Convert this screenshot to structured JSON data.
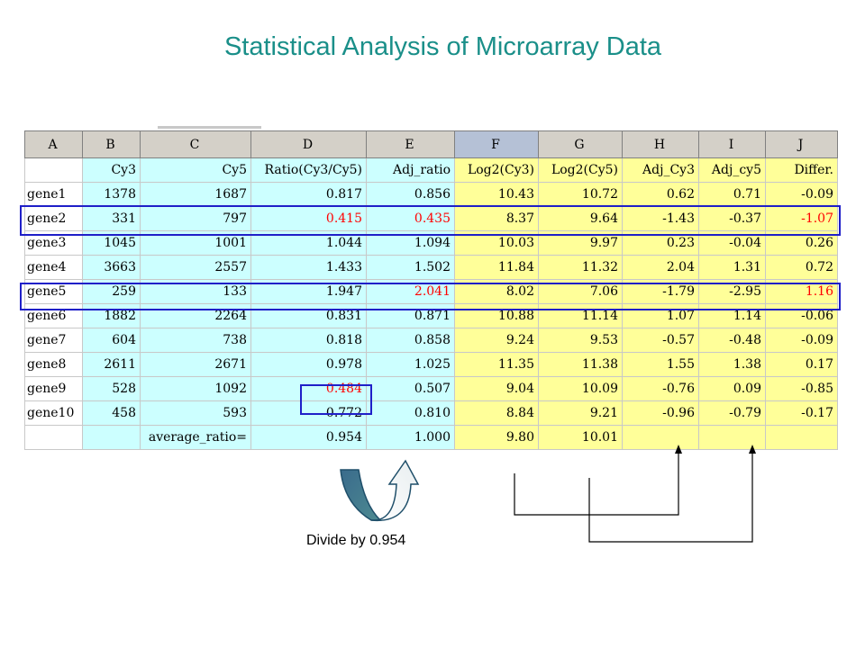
{
  "title": "Statistical Analysis of Microarray Data",
  "caption": "Divide by 0.954",
  "column_letters": [
    "A",
    "B",
    "C",
    "D",
    "E",
    "F",
    "G",
    "H",
    "I",
    "J"
  ],
  "headers": [
    "",
    "Cy3",
    "Cy5",
    "Ratio(Cy3/Cy5)",
    "Adj_ratio",
    "Log2(Cy3)",
    "Log2(Cy5)",
    "Adj_Cy3",
    "Adj_cy5",
    "Differ."
  ],
  "rows": [
    [
      "gene1",
      "1378",
      "1687",
      "0.817",
      "0.856",
      "10.43",
      "10.72",
      "0.62",
      "0.71",
      "-0.09"
    ],
    [
      "gene2",
      "331",
      "797",
      "0.415",
      "0.435",
      "8.37",
      "9.64",
      "-1.43",
      "-0.37",
      "-1.07"
    ],
    [
      "gene3",
      "1045",
      "1001",
      "1.044",
      "1.094",
      "10.03",
      "9.97",
      "0.23",
      "-0.04",
      "0.26"
    ],
    [
      "gene4",
      "3663",
      "2557",
      "1.433",
      "1.502",
      "11.84",
      "11.32",
      "2.04",
      "1.31",
      "0.72"
    ],
    [
      "gene5",
      "259",
      "133",
      "1.947",
      "2.041",
      "8.02",
      "7.06",
      "-1.79",
      "-2.95",
      "1.16"
    ],
    [
      "gene6",
      "1882",
      "2264",
      "0.831",
      "0.871",
      "10.88",
      "11.14",
      "1.07",
      "1.14",
      "-0.06"
    ],
    [
      "gene7",
      "604",
      "738",
      "0.818",
      "0.858",
      "9.24",
      "9.53",
      "-0.57",
      "-0.48",
      "-0.09"
    ],
    [
      "gene8",
      "2611",
      "2671",
      "0.978",
      "1.025",
      "11.35",
      "11.38",
      "1.55",
      "1.38",
      "0.17"
    ],
    [
      "gene9",
      "528",
      "1092",
      "0.484",
      "0.507",
      "9.04",
      "10.09",
      "-0.76",
      "0.09",
      "-0.85"
    ],
    [
      "gene10",
      "458",
      "593",
      "0.772",
      "0.810",
      "8.84",
      "9.21",
      "-0.96",
      "-0.79",
      "-0.17"
    ]
  ],
  "average_row": {
    "label": "average_ratio=",
    "ratio": "0.954",
    "adj_ratio": "1.000",
    "log2_cy3": "9.80",
    "log2_cy5": "10.01"
  },
  "highlight_color": "#ff0000",
  "box_color": "#1f1fc8"
}
